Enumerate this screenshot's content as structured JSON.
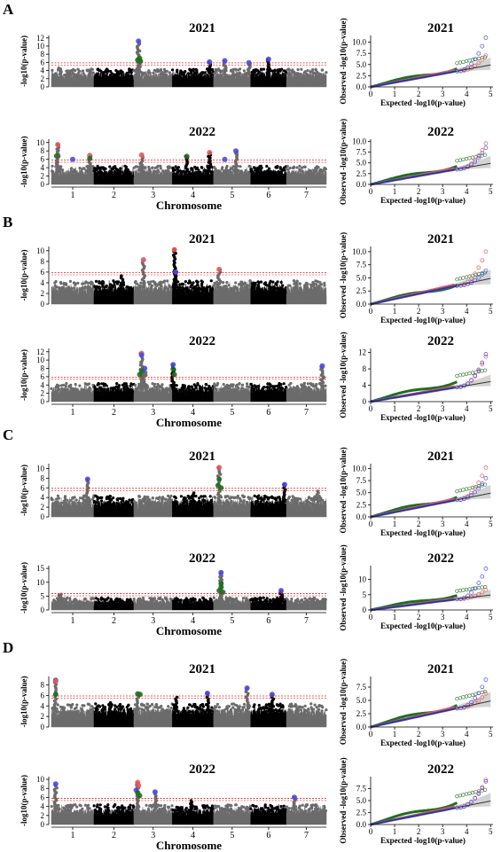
{
  "chromosome_label": "Chromosome",
  "chromosomes": [
    "1",
    "2",
    "3",
    "4",
    "5",
    "6",
    "7"
  ],
  "manhattan_ylabel": "-log10(p-value)",
  "qq_xlabel": "Expected -log10(p-value)",
  "qq_ylabel": "Observed -log10(p-value)",
  "colors": {
    "chrom_dark": "#000000",
    "chrom_grey": "#6b6b6b",
    "threshold": "#e02020",
    "green": "#1f6e1f",
    "red": "#e05a5a",
    "blue": "#4a4ae6",
    "ci": "#c8c8c8"
  },
  "chart_data": [
    {
      "panel": "A",
      "year": "2021",
      "type": "scatter",
      "subtype": "manhattan",
      "yticks": [
        0,
        2,
        4,
        6,
        8,
        10,
        12
      ],
      "ylim": [
        0,
        12.6
      ],
      "threshold": 5.9,
      "peaks": [
        {
          "chr": 1,
          "pos": 0.2,
          "v": 4.9
        },
        {
          "chr": 2,
          "pos": 0.7,
          "v": 4.2
        },
        {
          "chr": 3,
          "pos": 0.12,
          "v": 11.2
        },
        {
          "chr": 3,
          "pos": 0.15,
          "v": 7.0
        },
        {
          "chr": 4,
          "pos": 0.9,
          "v": 6.1
        },
        {
          "chr": 5,
          "pos": 0.3,
          "v": 6.4
        },
        {
          "chr": 5,
          "pos": 0.95,
          "v": 5.9
        },
        {
          "chr": 6,
          "pos": 0.5,
          "v": 6.8
        }
      ],
      "highlights": [
        {
          "chr": 3,
          "pos": 0.12,
          "v": 11.2,
          "c": "blue"
        },
        {
          "chr": 3,
          "pos": 0.15,
          "v": 7.0,
          "c": "green"
        },
        {
          "chr": 3,
          "pos": 0.1,
          "v": 6.6,
          "c": "green"
        },
        {
          "chr": 3,
          "pos": 0.17,
          "v": 6.3,
          "c": "green"
        },
        {
          "chr": 4,
          "pos": 0.9,
          "v": 6.1,
          "c": "blue"
        },
        {
          "chr": 5,
          "pos": 0.3,
          "v": 6.4,
          "c": "blue"
        },
        {
          "chr": 5,
          "pos": 0.95,
          "v": 5.9,
          "c": "blue"
        },
        {
          "chr": 6,
          "pos": 0.5,
          "v": 6.8,
          "c": "blue"
        }
      ]
    },
    {
      "panel": "A",
      "year": "2021",
      "type": "scatter",
      "subtype": "qq",
      "xticks": [
        0,
        1,
        2,
        3,
        4,
        5
      ],
      "yticks": [
        "0.0",
        "2.5",
        "5.0",
        "7.5",
        "10.0"
      ],
      "xlim": [
        0,
        5
      ],
      "ylim": [
        0,
        11.5
      ],
      "green_end": [
        3.6,
        5.3
      ],
      "blue_end": [
        4.8,
        11.0
      ],
      "red_end": [
        4.8,
        7.0
      ]
    },
    {
      "panel": "A",
      "year": "2022",
      "type": "scatter",
      "subtype": "manhattan",
      "yticks": [
        0,
        2,
        4,
        6,
        8,
        10
      ],
      "ylim": [
        0,
        10.8
      ],
      "threshold": 5.8,
      "peaks": [
        {
          "chr": 1,
          "pos": 0.15,
          "v": 9.5
        },
        {
          "chr": 1,
          "pos": 0.9,
          "v": 6.9
        },
        {
          "chr": 3,
          "pos": 0.2,
          "v": 7.0
        },
        {
          "chr": 4,
          "pos": 0.35,
          "v": 6.7
        },
        {
          "chr": 4,
          "pos": 0.9,
          "v": 7.6
        },
        {
          "chr": 5,
          "pos": 0.6,
          "v": 8.0
        }
      ],
      "highlights": [
        {
          "chr": 1,
          "pos": 0.15,
          "v": 9.5,
          "c": "red"
        },
        {
          "chr": 1,
          "pos": 0.12,
          "v": 6.8,
          "c": "green"
        },
        {
          "chr": 1,
          "pos": 0.5,
          "v": 6.0,
          "c": "blue"
        },
        {
          "chr": 1,
          "pos": 0.9,
          "v": 6.9,
          "c": "red"
        },
        {
          "chr": 1,
          "pos": 0.9,
          "v": 6.2,
          "c": "green"
        },
        {
          "chr": 3,
          "pos": 0.2,
          "v": 7.0,
          "c": "red"
        },
        {
          "chr": 4,
          "pos": 0.35,
          "v": 6.7,
          "c": "green"
        },
        {
          "chr": 4,
          "pos": 0.9,
          "v": 7.6,
          "c": "red"
        },
        {
          "chr": 5,
          "pos": 0.3,
          "v": 6.0,
          "c": "blue"
        },
        {
          "chr": 5,
          "pos": 0.6,
          "v": 8.0,
          "c": "blue"
        }
      ]
    },
    {
      "panel": "A",
      "year": "2022",
      "type": "scatter",
      "subtype": "qq",
      "xticks": [
        0,
        1,
        2,
        3,
        4,
        5
      ],
      "yticks": [
        "0.0",
        "2.5",
        "5.0",
        "7.5",
        "10.0"
      ],
      "xlim": [
        0,
        5
      ],
      "ylim": [
        0,
        10.5
      ],
      "green_end": [
        3.6,
        5.5
      ],
      "blue_end": [
        4.8,
        8.5
      ],
      "red_end": [
        4.8,
        9.5
      ]
    },
    {
      "panel": "B",
      "year": "2021",
      "type": "scatter",
      "subtype": "manhattan",
      "yticks": [
        0,
        2,
        4,
        6,
        8,
        10
      ],
      "ylim": [
        0,
        10.8
      ],
      "threshold": 5.9,
      "peaks": [
        {
          "chr": 2,
          "pos": 0.7,
          "v": 5.6
        },
        {
          "chr": 3,
          "pos": 0.25,
          "v": 8.3
        },
        {
          "chr": 4,
          "pos": 0.05,
          "v": 10.2
        },
        {
          "chr": 4,
          "pos": 0.08,
          "v": 6.0
        },
        {
          "chr": 5,
          "pos": 0.15,
          "v": 6.5
        },
        {
          "chr": 7,
          "pos": 0.5,
          "v": 4.1
        }
      ],
      "highlights": [
        {
          "chr": 3,
          "pos": 0.25,
          "v": 8.3,
          "c": "red"
        },
        {
          "chr": 4,
          "pos": 0.05,
          "v": 10.2,
          "c": "red"
        },
        {
          "chr": 4,
          "pos": 0.08,
          "v": 6.0,
          "c": "blue"
        },
        {
          "chr": 5,
          "pos": 0.15,
          "v": 6.5,
          "c": "red"
        }
      ]
    },
    {
      "panel": "B",
      "year": "2021",
      "type": "scatter",
      "subtype": "qq",
      "xticks": [
        0,
        1,
        2,
        3,
        4,
        5
      ],
      "yticks": [
        "0.0",
        "2.5",
        "5.0",
        "7.5",
        "10.0"
      ],
      "xlim": [
        0,
        5
      ],
      "ylim": [
        0,
        11
      ],
      "green_end": [
        3.6,
        4.7
      ],
      "blue_end": [
        4.8,
        6.4
      ],
      "red_end": [
        4.8,
        10.0
      ]
    },
    {
      "panel": "B",
      "year": "2022",
      "type": "scatter",
      "subtype": "manhattan",
      "yticks": [
        0,
        2,
        4,
        6,
        8,
        10,
        12
      ],
      "ylim": [
        0,
        12.8
      ],
      "threshold": 5.9,
      "peaks": [
        {
          "chr": 3,
          "pos": 0.2,
          "v": 11.6
        },
        {
          "chr": 3,
          "pos": 0.28,
          "v": 8.0
        },
        {
          "chr": 4,
          "pos": 0.02,
          "v": 8.9
        },
        {
          "chr": 7,
          "pos": 0.9,
          "v": 8.6
        }
      ],
      "highlights": [
        {
          "chr": 3,
          "pos": 0.2,
          "v": 11.6,
          "c": "red"
        },
        {
          "chr": 3,
          "pos": 0.2,
          "v": 11.2,
          "c": "blue"
        },
        {
          "chr": 3,
          "pos": 0.28,
          "v": 8.0,
          "c": "blue"
        },
        {
          "chr": 3,
          "pos": 0.2,
          "v": 7.3,
          "c": "green"
        },
        {
          "chr": 3,
          "pos": 0.15,
          "v": 6.5,
          "c": "green"
        },
        {
          "chr": 4,
          "pos": 0.02,
          "v": 8.9,
          "c": "blue"
        },
        {
          "chr": 4,
          "pos": 0.02,
          "v": 7.8,
          "c": "green"
        },
        {
          "chr": 4,
          "pos": 0.05,
          "v": 6.5,
          "c": "green"
        },
        {
          "chr": 7,
          "pos": 0.9,
          "v": 8.6,
          "c": "blue"
        }
      ]
    },
    {
      "panel": "B",
      "year": "2022",
      "type": "scatter",
      "subtype": "qq",
      "xticks": [
        0,
        1,
        2,
        3,
        4,
        5
      ],
      "yticks": [
        "0",
        "4",
        "8",
        "12"
      ],
      "xlim": [
        0,
        5
      ],
      "ylim": [
        0,
        13
      ],
      "green_end": [
        3.6,
        6.3
      ],
      "blue_end": [
        4.8,
        11.6
      ],
      "red_end": [
        4.8,
        11.0
      ]
    },
    {
      "panel": "C",
      "year": "2021",
      "type": "scatter",
      "subtype": "manhattan",
      "yticks": [
        0,
        2,
        4,
        6,
        8,
        10
      ],
      "ylim": [
        0,
        11
      ],
      "threshold": 5.9,
      "peaks": [
        {
          "chr": 1,
          "pos": 0.85,
          "v": 7.8
        },
        {
          "chr": 2,
          "pos": 0.4,
          "v": 4.3
        },
        {
          "chr": 4,
          "pos": 0.5,
          "v": 5.1
        },
        {
          "chr": 5,
          "pos": 0.15,
          "v": 10.2
        },
        {
          "chr": 6,
          "pos": 0.95,
          "v": 6.7
        },
        {
          "chr": 7,
          "pos": 0.8,
          "v": 5.6
        }
      ],
      "highlights": [
        {
          "chr": 1,
          "pos": 0.85,
          "v": 7.8,
          "c": "blue"
        },
        {
          "chr": 5,
          "pos": 0.15,
          "v": 10.2,
          "c": "red"
        },
        {
          "chr": 5,
          "pos": 0.15,
          "v": 7.8,
          "c": "green"
        },
        {
          "chr": 5,
          "pos": 0.12,
          "v": 6.5,
          "c": "green"
        },
        {
          "chr": 5,
          "pos": 0.2,
          "v": 6.0,
          "c": "green"
        },
        {
          "chr": 6,
          "pos": 0.95,
          "v": 6.7,
          "c": "blue"
        }
      ]
    },
    {
      "panel": "C",
      "year": "2021",
      "type": "scatter",
      "subtype": "qq",
      "xticks": [
        0,
        1,
        2,
        3,
        4,
        5
      ],
      "yticks": [
        "0.0",
        "2.5",
        "5.0",
        "7.5",
        "10.0"
      ],
      "xlim": [
        0,
        5
      ],
      "ylim": [
        0,
        11
      ],
      "green_end": [
        3.6,
        5.3
      ],
      "blue_end": [
        4.8,
        8.0
      ],
      "red_end": [
        4.8,
        10.2
      ]
    },
    {
      "panel": "C",
      "year": "2022",
      "type": "scatter",
      "subtype": "manhattan",
      "yticks": [
        0,
        5,
        10,
        15
      ],
      "ylim": [
        0,
        16
      ],
      "threshold": 5.9,
      "peaks": [
        {
          "chr": 1,
          "pos": 0.2,
          "v": 5.8
        },
        {
          "chr": 5,
          "pos": 0.2,
          "v": 13.5
        },
        {
          "chr": 6,
          "pos": 0.85,
          "v": 7.0
        }
      ],
      "highlights": [
        {
          "chr": 5,
          "pos": 0.2,
          "v": 13.5,
          "c": "blue"
        },
        {
          "chr": 5,
          "pos": 0.2,
          "v": 9.5,
          "c": "green"
        },
        {
          "chr": 5,
          "pos": 0.2,
          "v": 8.2,
          "c": "green"
        },
        {
          "chr": 5,
          "pos": 0.15,
          "v": 7.0,
          "c": "green"
        },
        {
          "chr": 5,
          "pos": 0.25,
          "v": 6.4,
          "c": "green"
        },
        {
          "chr": 6,
          "pos": 0.85,
          "v": 7.0,
          "c": "blue"
        }
      ]
    },
    {
      "panel": "C",
      "year": "2022",
      "type": "scatter",
      "subtype": "qq",
      "xticks": [
        0,
        1,
        2,
        3,
        4,
        5
      ],
      "yticks": [
        "0",
        "5",
        "10"
      ],
      "xlim": [
        0,
        5
      ],
      "ylim": [
        0,
        14.5
      ],
      "green_end": [
        3.6,
        6.2
      ],
      "blue_end": [
        4.8,
        13.5
      ],
      "red_end": [
        4.8,
        6.6
      ]
    },
    {
      "panel": "D",
      "year": "2021",
      "type": "scatter",
      "subtype": "manhattan",
      "yticks": [
        0,
        2,
        4,
        6,
        8
      ],
      "ylim": [
        0,
        9.6
      ],
      "threshold": 5.9,
      "peaks": [
        {
          "chr": 1,
          "pos": 0.1,
          "v": 8.9
        },
        {
          "chr": 2,
          "pos": 0.4,
          "v": 4.7
        },
        {
          "chr": 3,
          "pos": 0.1,
          "v": 6.3
        },
        {
          "chr": 4,
          "pos": 0.1,
          "v": 5.8
        },
        {
          "chr": 4,
          "pos": 0.85,
          "v": 6.4
        },
        {
          "chr": 5,
          "pos": 0.9,
          "v": 7.4
        },
        {
          "chr": 6,
          "pos": 0.6,
          "v": 6.2
        }
      ],
      "highlights": [
        {
          "chr": 1,
          "pos": 0.1,
          "v": 8.9,
          "c": "blue"
        },
        {
          "chr": 1,
          "pos": 0.1,
          "v": 8.7,
          "c": "red"
        },
        {
          "chr": 1,
          "pos": 0.1,
          "v": 6.2,
          "c": "green"
        },
        {
          "chr": 3,
          "pos": 0.1,
          "v": 6.3,
          "c": "green"
        },
        {
          "chr": 3,
          "pos": 0.16,
          "v": 6.2,
          "c": "green"
        },
        {
          "chr": 4,
          "pos": 0.85,
          "v": 6.4,
          "c": "blue"
        },
        {
          "chr": 5,
          "pos": 0.9,
          "v": 7.4,
          "c": "blue"
        },
        {
          "chr": 6,
          "pos": 0.6,
          "v": 6.2,
          "c": "blue"
        }
      ]
    },
    {
      "panel": "D",
      "year": "2021",
      "type": "scatter",
      "subtype": "qq",
      "xticks": [
        0,
        1,
        2,
        3,
        4,
        5
      ],
      "yticks": [
        "0.0",
        "2.5",
        "5.0",
        "7.5"
      ],
      "xlim": [
        0,
        5
      ],
      "ylim": [
        0,
        9.5
      ],
      "green_end": [
        3.6,
        5.3
      ],
      "blue_end": [
        4.8,
        8.9
      ],
      "red_end": [
        4.8,
        6.3
      ]
    },
    {
      "panel": "D",
      "year": "2022",
      "type": "scatter",
      "subtype": "manhattan",
      "yticks": [
        0,
        2,
        4,
        6,
        8,
        10
      ],
      "ylim": [
        0,
        10.6
      ],
      "threshold": 5.8,
      "peaks": [
        {
          "chr": 1,
          "pos": 0.1,
          "v": 9.0
        },
        {
          "chr": 3,
          "pos": 0.1,
          "v": 9.3
        },
        {
          "chr": 3,
          "pos": 0.55,
          "v": 7.2
        },
        {
          "chr": 4,
          "pos": 0.45,
          "v": 5.3
        },
        {
          "chr": 7,
          "pos": 0.2,
          "v": 6.0
        }
      ],
      "highlights": [
        {
          "chr": 1,
          "pos": 0.1,
          "v": 9.0,
          "c": "blue"
        },
        {
          "chr": 3,
          "pos": 0.1,
          "v": 9.3,
          "c": "red"
        },
        {
          "chr": 3,
          "pos": 0.12,
          "v": 8.6,
          "c": "red"
        },
        {
          "chr": 3,
          "pos": 0.06,
          "v": 7.6,
          "c": "blue"
        },
        {
          "chr": 3,
          "pos": 0.1,
          "v": 7.0,
          "c": "green"
        },
        {
          "chr": 3,
          "pos": 0.15,
          "v": 6.4,
          "c": "green"
        },
        {
          "chr": 3,
          "pos": 0.55,
          "v": 7.2,
          "c": "blue"
        },
        {
          "chr": 7,
          "pos": 0.2,
          "v": 6.0,
          "c": "blue"
        }
      ]
    },
    {
      "panel": "D",
      "year": "2022",
      "type": "scatter",
      "subtype": "qq",
      "xticks": [
        0,
        1,
        2,
        3,
        4,
        5
      ],
      "yticks": [
        "0.0",
        "2.5",
        "5.0",
        "7.5"
      ],
      "xlim": [
        0,
        5
      ],
      "ylim": [
        0,
        10
      ],
      "green_end": [
        3.6,
        5.9
      ],
      "blue_end": [
        4.8,
        9.0
      ],
      "red_end": [
        4.8,
        9.3
      ]
    }
  ]
}
